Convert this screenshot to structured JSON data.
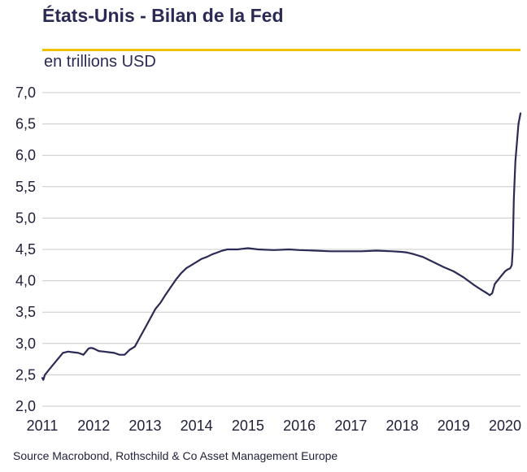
{
  "chart_data": {
    "type": "line",
    "title": "États-Unis - Bilan de la Fed",
    "subtitle": "en trillions USD",
    "source": "Source Macrobond, Rothschild & Co Asset Management Europe",
    "xlabel": "",
    "ylabel": "",
    "ylim": [
      2.0,
      7.0
    ],
    "xlim": [
      2011.0,
      2020.3
    ],
    "y_ticks": [
      "2,0",
      "2,5",
      "3,0",
      "3,5",
      "4,0",
      "4,5",
      "5,0",
      "5,5",
      "6,0",
      "6,5",
      "7,0"
    ],
    "x_ticks": [
      "2011",
      "2012",
      "2013",
      "2014",
      "2015",
      "2016",
      "2017",
      "2018",
      "2019",
      "2020"
    ],
    "grid": true,
    "colors": {
      "line": "#2b2a55",
      "accent": "#f2c200",
      "grid": "#c8c8c8"
    },
    "series": [
      {
        "x": [
          2011.0,
          2011.02,
          2011.05,
          2011.1,
          2011.2,
          2011.3,
          2011.4,
          2011.5,
          2011.6,
          2011.7,
          2011.8,
          2011.9,
          2011.95,
          2012.0,
          2012.1,
          2012.2,
          2012.3,
          2012.4,
          2012.5,
          2012.6,
          2012.7,
          2012.8,
          2012.9,
          2013.0,
          2013.1,
          2013.2,
          2013.3,
          2013.4,
          2013.5,
          2013.6,
          2013.7,
          2013.8,
          2013.9,
          2014.0,
          2014.1,
          2014.2,
          2014.3,
          2014.4,
          2014.5,
          2014.6,
          2014.7,
          2014.8,
          2014.9,
          2015.0,
          2015.2,
          2015.5,
          2015.8,
          2016.0,
          2016.3,
          2016.6,
          2016.9,
          2017.2,
          2017.5,
          2017.8,
          2018.0,
          2018.1,
          2018.2,
          2018.4,
          2018.6,
          2018.8,
          2019.0,
          2019.2,
          2019.4,
          2019.55,
          2019.65,
          2019.7,
          2019.75,
          2019.8,
          2019.9,
          2020.0,
          2020.05,
          2020.1,
          2020.13,
          2020.15,
          2020.17,
          2020.2,
          2020.23,
          2020.26,
          2020.3
        ],
        "values": [
          2.45,
          2.42,
          2.5,
          2.55,
          2.65,
          2.75,
          2.85,
          2.87,
          2.86,
          2.85,
          2.82,
          2.92,
          2.93,
          2.92,
          2.88,
          2.87,
          2.86,
          2.85,
          2.82,
          2.82,
          2.9,
          2.95,
          3.1,
          3.25,
          3.4,
          3.55,
          3.65,
          3.78,
          3.9,
          4.02,
          4.12,
          4.2,
          4.25,
          4.3,
          4.35,
          4.38,
          4.42,
          4.45,
          4.48,
          4.5,
          4.5,
          4.5,
          4.51,
          4.52,
          4.5,
          4.49,
          4.5,
          4.49,
          4.48,
          4.47,
          4.47,
          4.47,
          4.48,
          4.47,
          4.46,
          4.45,
          4.43,
          4.38,
          4.3,
          4.22,
          4.15,
          4.05,
          3.93,
          3.85,
          3.8,
          3.77,
          3.8,
          3.95,
          4.05,
          4.15,
          4.18,
          4.2,
          4.25,
          4.5,
          5.3,
          5.9,
          6.2,
          6.5,
          6.67
        ]
      }
    ]
  }
}
